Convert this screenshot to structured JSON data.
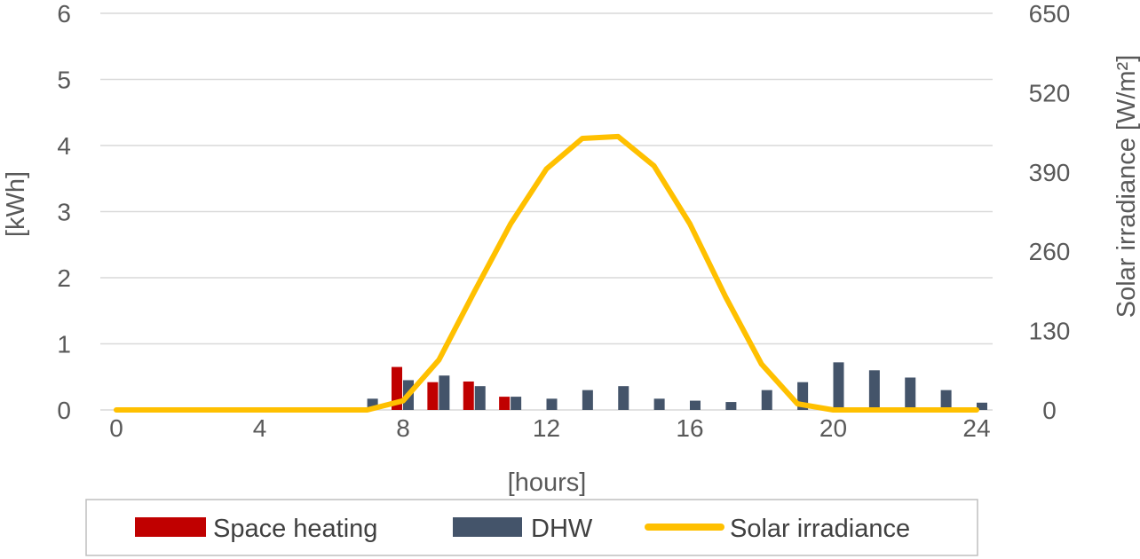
{
  "chart_data": {
    "type": "bar+line",
    "title": "",
    "xlabel": "[hours]",
    "ylabel": "[kWh]",
    "y2label": "Solar irradiance  [W/m²]",
    "x_ticks": [
      0,
      4,
      8,
      12,
      16,
      20,
      24
    ],
    "y_ticks": [
      0,
      1,
      2,
      3,
      4,
      5,
      6
    ],
    "y2_ticks": [
      0,
      130,
      260,
      390,
      520,
      650
    ],
    "xlim": [
      0,
      24
    ],
    "ylim": [
      0,
      6
    ],
    "y2lim": [
      0,
      650
    ],
    "grid": "horizontal",
    "legend_position": "bottom",
    "x": [
      7,
      8,
      9,
      10,
      11,
      12,
      13,
      14,
      15,
      16,
      17,
      18,
      19,
      20,
      21,
      22,
      23,
      24
    ],
    "series": [
      {
        "name": "Space heating",
        "kind": "bar",
        "axis": "left",
        "color": "#C00000",
        "values": [
          0,
          0.65,
          0.42,
          0.43,
          0.2,
          0,
          0,
          0,
          0,
          0,
          0,
          0,
          0,
          0,
          0,
          0,
          0,
          0
        ]
      },
      {
        "name": "DHW",
        "kind": "bar",
        "axis": "left",
        "color": "#44546A",
        "values": [
          0.17,
          0.45,
          0.52,
          0.36,
          0.2,
          0.17,
          0.3,
          0.36,
          0.17,
          0.14,
          0.12,
          0.3,
          0.42,
          0.72,
          0.6,
          0.49,
          0.3,
          0.11
        ]
      },
      {
        "name": "Solar irradiance",
        "kind": "line",
        "axis": "right",
        "color": "#FFC000",
        "x": [
          0,
          1,
          2,
          3,
          4,
          5,
          6,
          7,
          8,
          9,
          10,
          11,
          12,
          13,
          14,
          15,
          16,
          17,
          18,
          19,
          20,
          21,
          22,
          23,
          24
        ],
        "values": [
          0,
          0,
          0,
          0,
          0,
          0,
          0,
          0,
          15,
          82,
          195,
          305,
          395,
          445,
          448,
          400,
          305,
          185,
          75,
          10,
          0,
          0,
          0,
          0,
          0
        ]
      }
    ]
  }
}
